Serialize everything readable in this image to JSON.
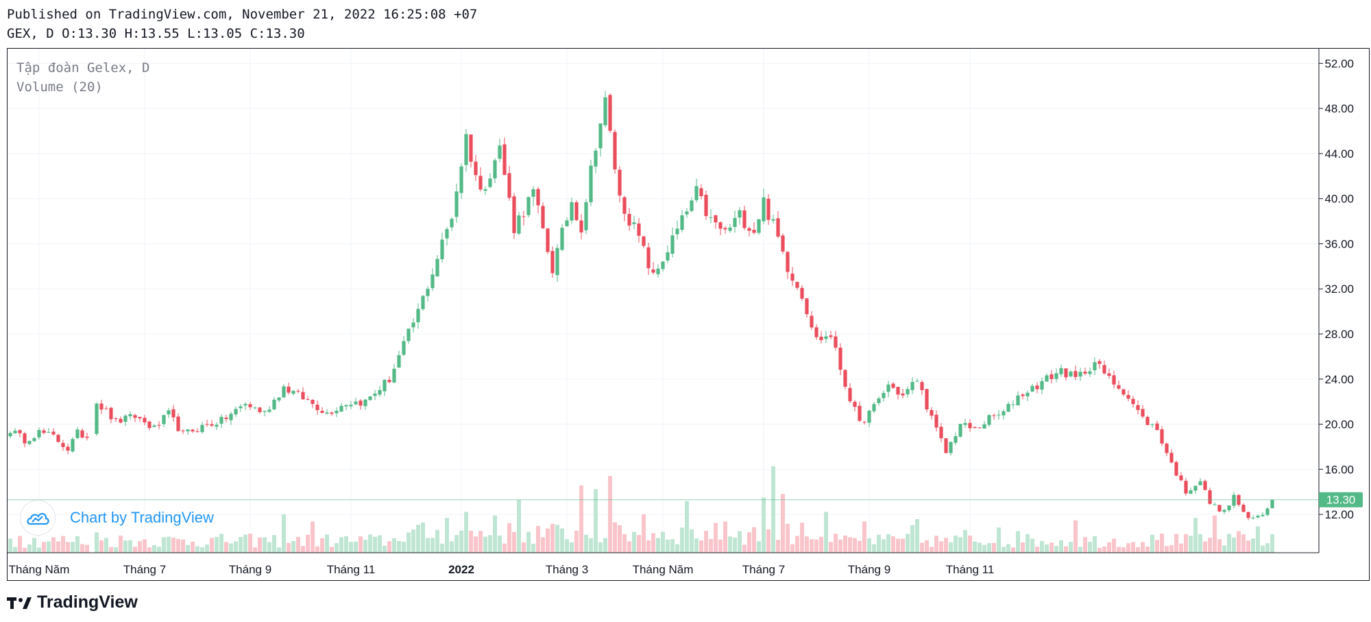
{
  "header": {
    "published": "Published on TradingView.com, November 21, 2022 16:25:08 +07",
    "ohlc": "GEX, D O:13.30 H:13.55 L:13.05 C:13.30"
  },
  "legend": {
    "title": "Tập đoàn Gelex, D",
    "volume": "Volume (20)"
  },
  "watermark": {
    "text": "Chart by TradingView"
  },
  "footer": {
    "brand": "TradingView"
  },
  "colors": {
    "up": "#26a69a",
    "up_candle": "#53b987",
    "down_candle": "#eb4d5c",
    "vol_up": "#bfe5d3",
    "vol_down": "#f9c4ca",
    "grid": "#f0f3fa",
    "tag": "#53b987"
  },
  "chart_data": {
    "type": "candlestick",
    "title": "Tập đoàn Gelex, D",
    "symbol": "GEX",
    "interval": "D",
    "ylim": [
      8.6,
      53.3
    ],
    "y_ticks": [
      "52.00",
      "48.00",
      "44.00",
      "40.00",
      "36.00",
      "32.00",
      "28.00",
      "24.00",
      "20.00",
      "16.00",
      "12.00"
    ],
    "x_ticks": [
      {
        "label": "Tháng Năm",
        "bold": false
      },
      {
        "label": "Tháng 7",
        "bold": false
      },
      {
        "label": "Tháng 9",
        "bold": false
      },
      {
        "label": "Tháng 11",
        "bold": false
      },
      {
        "label": "2022",
        "bold": true
      },
      {
        "label": "Tháng 3",
        "bold": false
      },
      {
        "label": "Tháng Năm",
        "bold": false
      },
      {
        "label": "Tháng 7",
        "bold": false
      },
      {
        "label": "Tháng 9",
        "bold": false
      },
      {
        "label": "Tháng 11",
        "bold": false
      }
    ],
    "last_price": "13.30",
    "last_price_value": 13.3,
    "close_path": [
      [
        0,
        19.5
      ],
      [
        3,
        18.6
      ],
      [
        6,
        19.3
      ],
      [
        9,
        18.9
      ],
      [
        12,
        17.8
      ],
      [
        14,
        19.2
      ],
      [
        16,
        18.9
      ],
      [
        17,
        19.4
      ],
      [
        18,
        22.0
      ],
      [
        22,
        20.2
      ],
      [
        26,
        20.7
      ],
      [
        30,
        19.6
      ],
      [
        33,
        20.9
      ],
      [
        36,
        19.1
      ],
      [
        40,
        19.8
      ],
      [
        44,
        20.3
      ],
      [
        49,
        21.8
      ],
      [
        53,
        21.0
      ],
      [
        57,
        23.3
      ],
      [
        62,
        22.1
      ],
      [
        66,
        21.0
      ],
      [
        70,
        21.9
      ],
      [
        74,
        22.0
      ],
      [
        79,
        24.0
      ],
      [
        85,
        30.0
      ],
      [
        88,
        33.5
      ],
      [
        92,
        38.5
      ],
      [
        95,
        45.5
      ],
      [
        98,
        40.5
      ],
      [
        102,
        44.5
      ],
      [
        105,
        37.5
      ],
      [
        109,
        40.5
      ],
      [
        113,
        33.8
      ],
      [
        117,
        39.8
      ],
      [
        119,
        37.5
      ],
      [
        122,
        45.0
      ],
      [
        124,
        48.5
      ],
      [
        127,
        40.0
      ],
      [
        131,
        36.5
      ],
      [
        134,
        33.0
      ],
      [
        137,
        35.5
      ],
      [
        140,
        38.0
      ],
      [
        143,
        40.5
      ],
      [
        146,
        38.0
      ],
      [
        149,
        37.0
      ],
      [
        152,
        38.5
      ],
      [
        155,
        37.2
      ],
      [
        157,
        39.8
      ],
      [
        160,
        36.5
      ],
      [
        162,
        34.0
      ],
      [
        165,
        31.5
      ],
      [
        168,
        27.5
      ],
      [
        171,
        27.9
      ],
      [
        174,
        23.5
      ],
      [
        177,
        20.0
      ],
      [
        180,
        21.5
      ],
      [
        183,
        23.5
      ],
      [
        186,
        22.5
      ],
      [
        189,
        24.0
      ],
      [
        192,
        20.5
      ],
      [
        195,
        17.5
      ],
      [
        198,
        20.0
      ],
      [
        201,
        19.5
      ],
      [
        204,
        20.5
      ],
      [
        207,
        21.0
      ],
      [
        210,
        22.5
      ],
      [
        213,
        23.2
      ],
      [
        216,
        24.0
      ],
      [
        219,
        24.8
      ],
      [
        222,
        24.0
      ],
      [
        226,
        25.5
      ],
      [
        229,
        24.0
      ],
      [
        232,
        23.0
      ],
      [
        236,
        20.5
      ],
      [
        239,
        19.5
      ],
      [
        242,
        16.5
      ],
      [
        245,
        14.0
      ],
      [
        248,
        15.0
      ],
      [
        250,
        13.0
      ],
      [
        253,
        12.2
      ],
      [
        255,
        13.6
      ],
      [
        258,
        11.5
      ],
      [
        261,
        12.0
      ],
      [
        263,
        13.3
      ]
    ],
    "volume_spikes": [
      [
        2,
        1.4
      ],
      [
        18,
        1.7
      ],
      [
        57,
        3.2
      ],
      [
        63,
        2.6
      ],
      [
        91,
        2.9
      ],
      [
        95,
        3.4
      ],
      [
        101,
        3.1
      ],
      [
        106,
        4.4
      ],
      [
        119,
        5.6
      ],
      [
        122,
        5.3
      ],
      [
        125,
        6.4
      ],
      [
        132,
        3.2
      ],
      [
        141,
        4.3
      ],
      [
        149,
        2.6
      ],
      [
        157,
        4.6
      ],
      [
        159,
        7.2
      ],
      [
        161,
        4.9
      ],
      [
        165,
        2.5
      ],
      [
        170,
        3.4
      ],
      [
        178,
        2.6
      ],
      [
        188,
        2.3
      ],
      [
        189,
        2.8
      ],
      [
        199,
        1.9
      ],
      [
        206,
        2.1
      ],
      [
        210,
        1.8
      ],
      [
        222,
        2.7
      ],
      [
        240,
        1.6
      ],
      [
        247,
        2.9
      ],
      [
        251,
        3.1
      ],
      [
        256,
        1.8
      ],
      [
        260,
        2.2
      ]
    ]
  }
}
